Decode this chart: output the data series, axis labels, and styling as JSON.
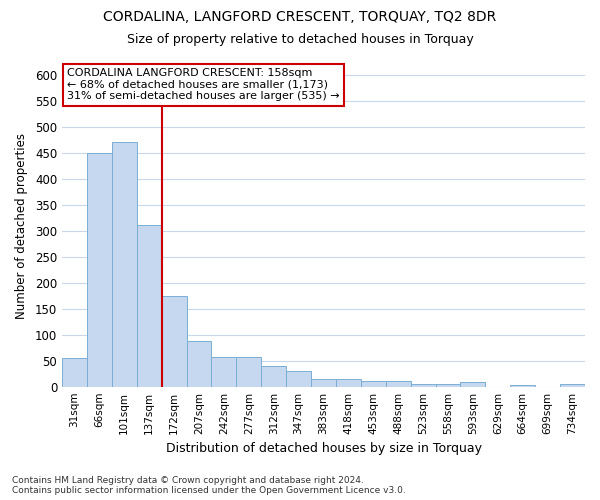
{
  "title": "CORDALINA, LANGFORD CRESCENT, TORQUAY, TQ2 8DR",
  "subtitle": "Size of property relative to detached houses in Torquay",
  "xlabel": "Distribution of detached houses by size in Torquay",
  "ylabel": "Number of detached properties",
  "categories": [
    "31sqm",
    "66sqm",
    "101sqm",
    "137sqm",
    "172sqm",
    "207sqm",
    "242sqm",
    "277sqm",
    "312sqm",
    "347sqm",
    "383sqm",
    "418sqm",
    "453sqm",
    "488sqm",
    "523sqm",
    "558sqm",
    "593sqm",
    "629sqm",
    "664sqm",
    "699sqm",
    "734sqm"
  ],
  "values": [
    55,
    450,
    472,
    312,
    175,
    88,
    57,
    57,
    40,
    30,
    15,
    15,
    10,
    10,
    6,
    6,
    9,
    0,
    4,
    0,
    5
  ],
  "bar_color": "#c5d8f0",
  "bar_edge_color": "#7baed4",
  "vline_color": "#cc0000",
  "annotation_line1": "CORDALINA LANGFORD CRESCENT: 158sqm",
  "annotation_line2": "← 68% of detached houses are smaller (1,173)",
  "annotation_line3": "31% of semi-detached houses are larger (535) →",
  "annotation_box_color": "#ffffff",
  "annotation_box_edge": "#cc0000",
  "ylim": [
    0,
    620
  ],
  "yticks": [
    0,
    50,
    100,
    150,
    200,
    250,
    300,
    350,
    400,
    450,
    500,
    550,
    600
  ],
  "footer1": "Contains HM Land Registry data © Crown copyright and database right 2024.",
  "footer2": "Contains public sector information licensed under the Open Government Licence v3.0.",
  "bg_color": "#ffffff",
  "plot_bg_color": "#ffffff",
  "grid_color": "#c8d8ea"
}
